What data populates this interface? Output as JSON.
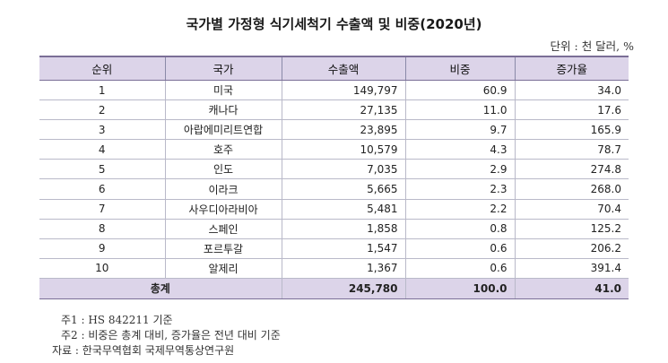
{
  "title": "국가별 가정형 식기세척기 수출액 및 비중(2020년)",
  "unit": "단위 : 천 달러, %",
  "table": {
    "headers": [
      "순위",
      "국가",
      "수출액",
      "비중",
      "증가율"
    ],
    "rows": [
      {
        "rank": "1",
        "country": "미국",
        "export": "149,797",
        "share": "60.9",
        "growth": "34.0"
      },
      {
        "rank": "2",
        "country": "캐나다",
        "export": "27,135",
        "share": "11.0",
        "growth": "17.6"
      },
      {
        "rank": "3",
        "country": "아랍에미리트연합",
        "export": "23,895",
        "share": "9.7",
        "growth": "165.9"
      },
      {
        "rank": "4",
        "country": "호주",
        "export": "10,579",
        "share": "4.3",
        "growth": "78.7"
      },
      {
        "rank": "5",
        "country": "인도",
        "export": "7,035",
        "share": "2.9",
        "growth": "274.8"
      },
      {
        "rank": "6",
        "country": "이라크",
        "export": "5,665",
        "share": "2.3",
        "growth": "268.0"
      },
      {
        "rank": "7",
        "country": "사우디아라비아",
        "export": "5,481",
        "share": "2.2",
        "growth": "70.4"
      },
      {
        "rank": "8",
        "country": "스페인",
        "export": "1,858",
        "share": "0.8",
        "growth": "125.2"
      },
      {
        "rank": "9",
        "country": "포르투갈",
        "export": "1,547",
        "share": "0.6",
        "growth": "206.2"
      },
      {
        "rank": "10",
        "country": "알제리",
        "export": "1,367",
        "share": "0.6",
        "growth": "391.4"
      }
    ],
    "total": {
      "label": "총계",
      "export": "245,780",
      "share": "100.0",
      "growth": "41.0"
    }
  },
  "notes": [
    "주1 : HS 842211 기준",
    "주2 : 비중은 총계 대비, 증가율은 전년 대비 기준"
  ],
  "source": "자료 : 한국무역협회 국제무역통상연구원",
  "colors": {
    "header_bg": "#dcd4e9",
    "rule": "#7a6e96"
  }
}
